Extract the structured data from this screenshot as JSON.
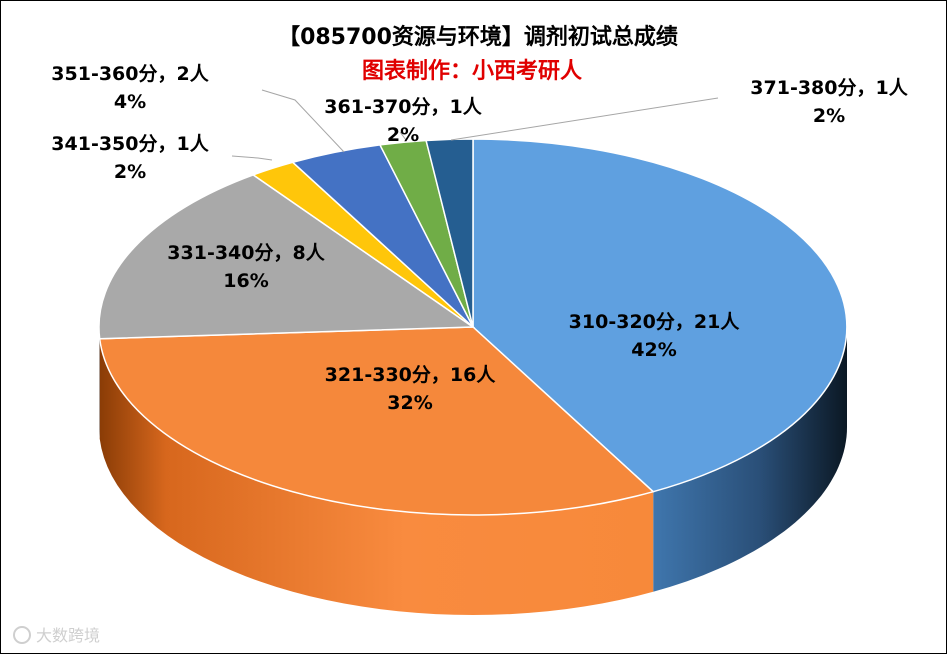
{
  "chart_data": {
    "type": "pie",
    "title": "【085700资源与环境】调剂初试总成绩",
    "subtitle": "图表制作：小西考研人",
    "slices": [
      {
        "label": "310-320分，21人",
        "value": 21,
        "percent": "42%",
        "color": "#5fa0e0"
      },
      {
        "label": "321-330分，16人",
        "value": 16,
        "percent": "32%",
        "color": "#f5883b"
      },
      {
        "label": "331-340分，8人",
        "value": 8,
        "percent": "16%",
        "color": "#a9a9a9"
      },
      {
        "label": "341-350分，1人",
        "value": 1,
        "percent": "2%",
        "color": "#ffc60a"
      },
      {
        "label": "351-360分，2人",
        "value": 2,
        "percent": "4%",
        "color": "#4472c4"
      },
      {
        "label": "361-370分，1人",
        "value": 1,
        "percent": "2%",
        "color": "#70ad47"
      },
      {
        "label": "371-380分，1人",
        "value": 1,
        "percent": "2%",
        "color": "#255e91"
      }
    ]
  },
  "watermark": "大数跨境"
}
